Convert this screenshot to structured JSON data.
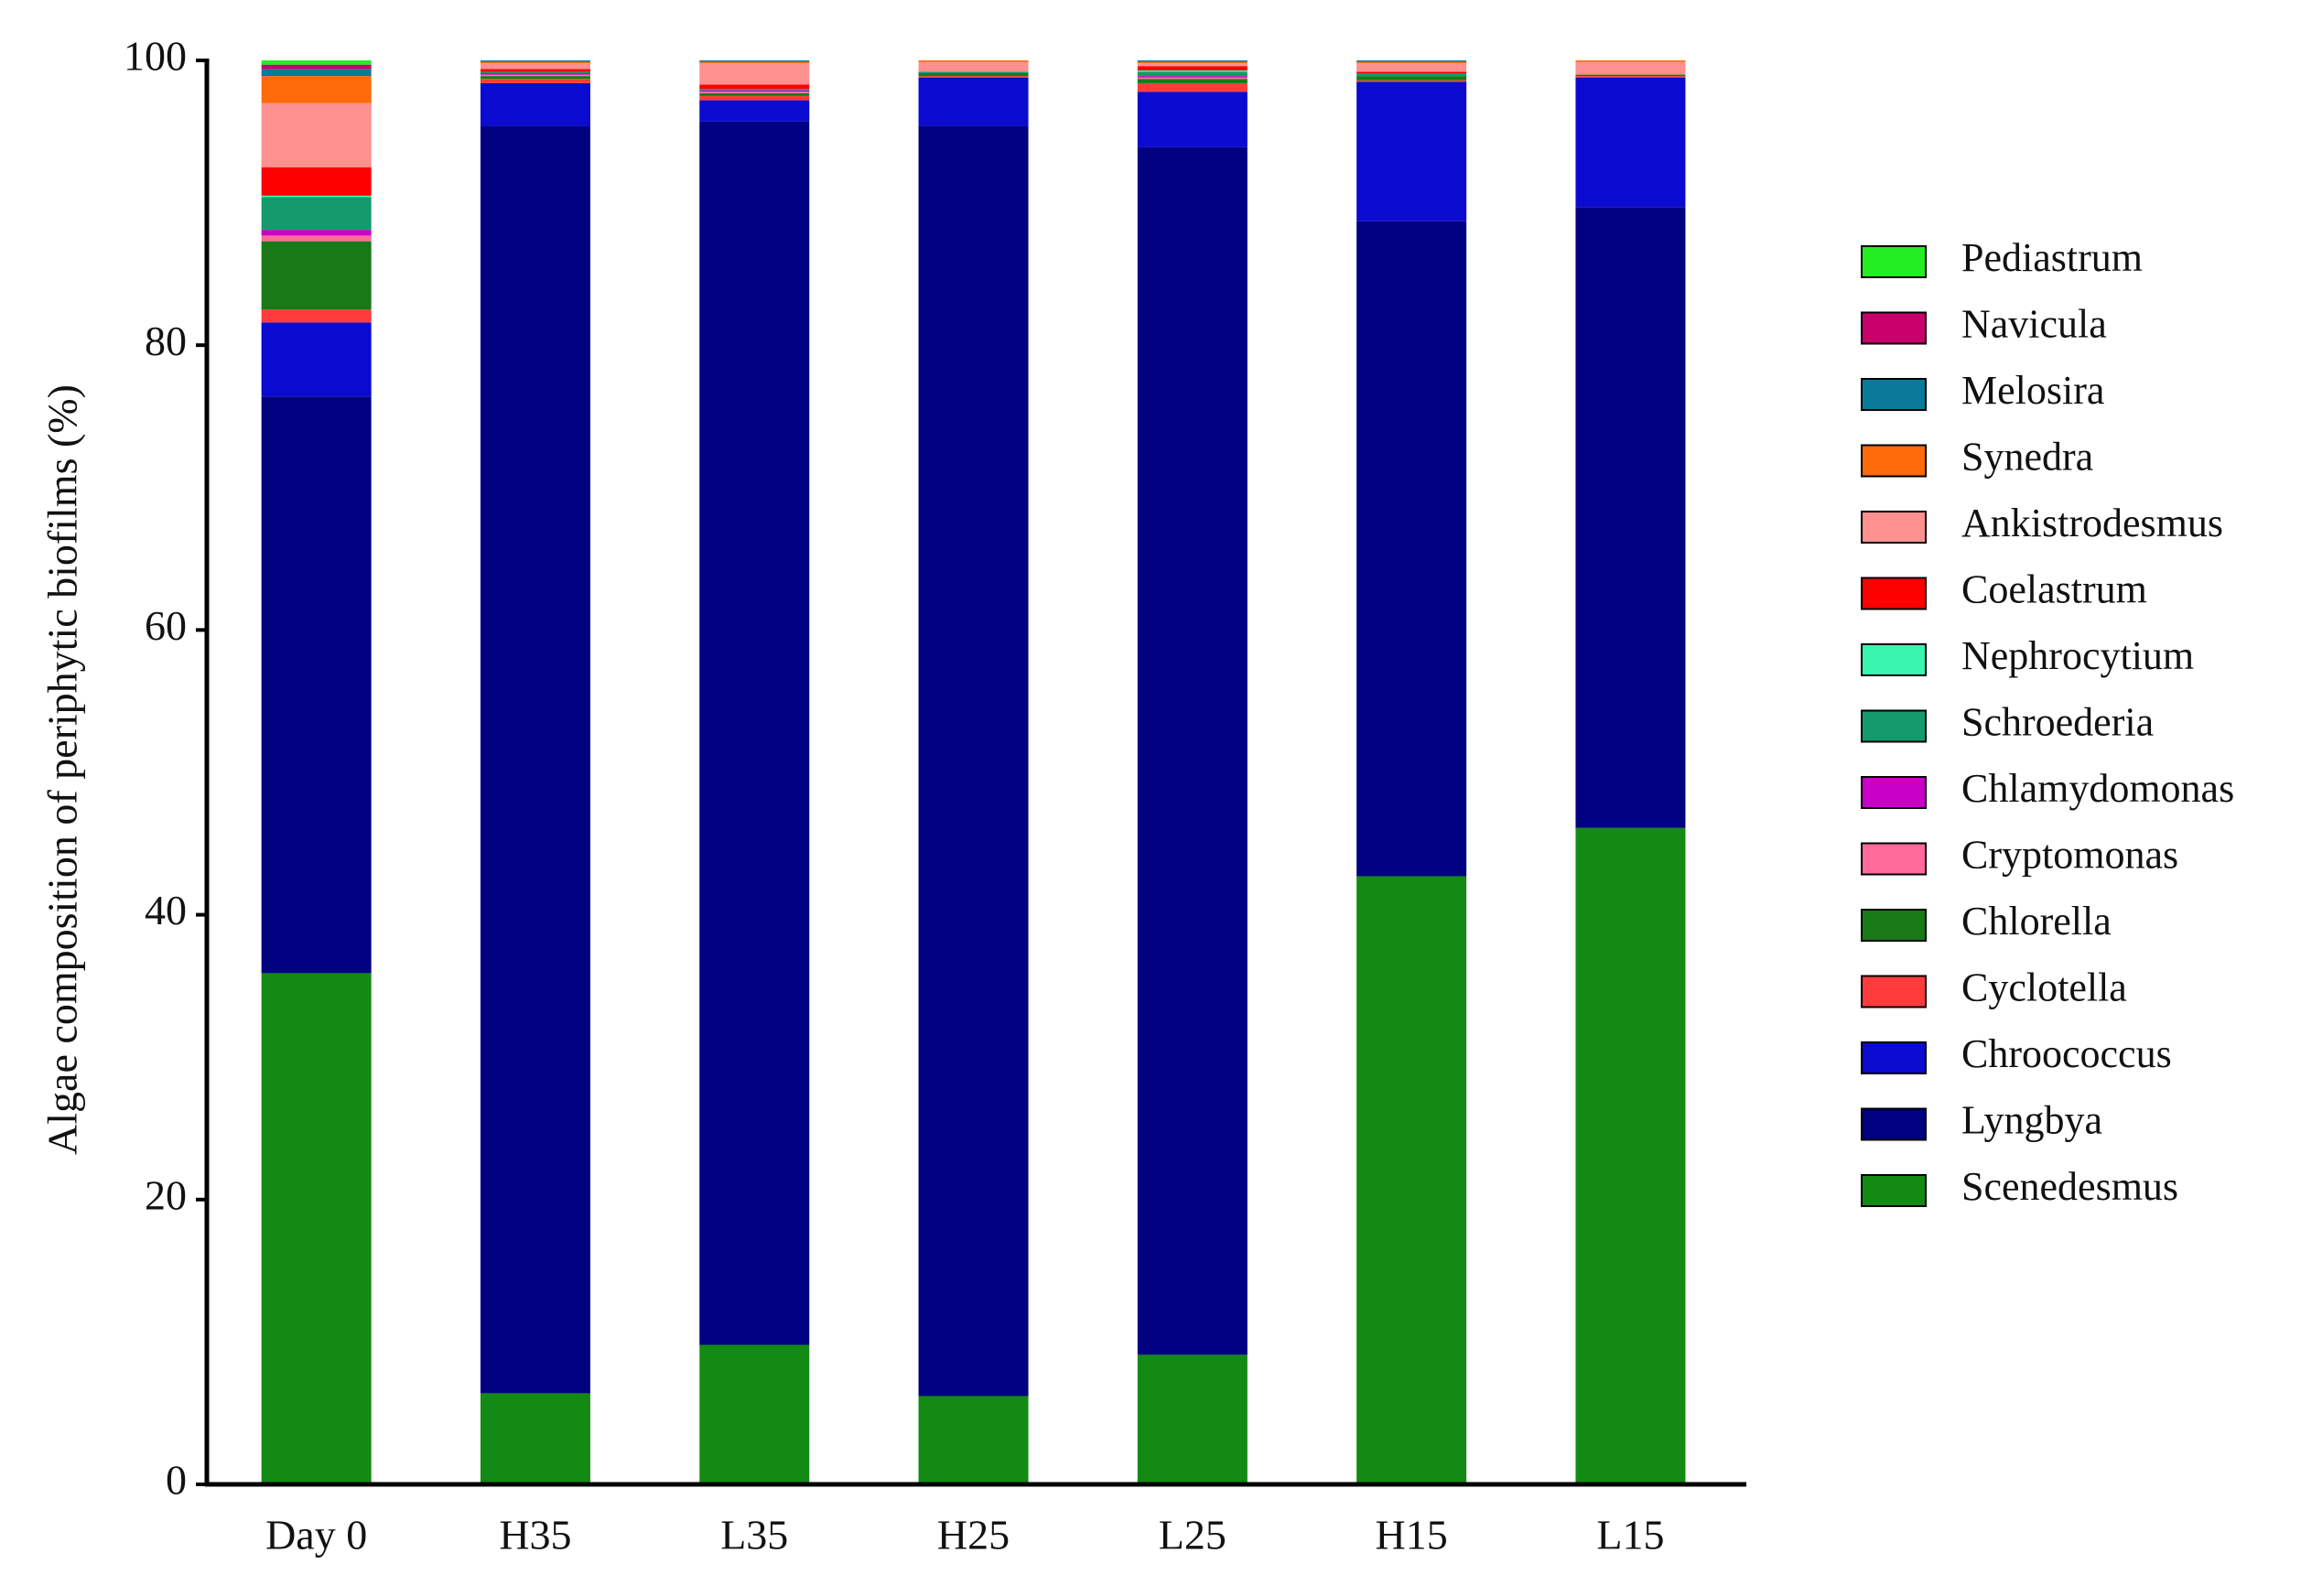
{
  "chart_data": {
    "type": "stacked_bar",
    "y_label": "Algae composition  of periphytic biofilms (%)",
    "categories": [
      "Day 0",
      "H35",
      "L35",
      "H25",
      "L25",
      "H15",
      "L15"
    ],
    "ylim": [
      0,
      100
    ],
    "yticks": [
      0,
      20,
      40,
      60,
      80,
      100
    ],
    "series": [
      {
        "name": "Scenedesmus",
        "color": "#138a13",
        "values": [
          35.9,
          6.4,
          9.8,
          6.2,
          9.1,
          42.7,
          46.1
        ]
      },
      {
        "name": "Lyngbya",
        "color": "#000080",
        "values": [
          40.5,
          89.0,
          85.9,
          89.2,
          84.8,
          46.0,
          43.6
        ]
      },
      {
        "name": "Chroococcus",
        "color": "#0a0ad0",
        "values": [
          5.2,
          3.0,
          1.5,
          3.4,
          3.9,
          9.8,
          9.1
        ]
      },
      {
        "name": "Cyclotella",
        "color": "#ff3b3b",
        "values": [
          0.9,
          0.3,
          0.3,
          0.1,
          0.6,
          0.1,
          0.1
        ]
      },
      {
        "name": "Chlorella",
        "color": "#177a17",
        "values": [
          4.8,
          0.2,
          0.2,
          0.2,
          0.3,
          0.3,
          0.1
        ]
      },
      {
        "name": "Cryptomonas",
        "color": "#ff6a9a",
        "values": [
          0.4,
          0.1,
          0.1,
          0,
          0.1,
          0,
          0
        ]
      },
      {
        "name": "Chlamydomonas",
        "color": "#c800c8",
        "values": [
          0.4,
          0.1,
          0.1,
          0,
          0.1,
          0,
          0
        ]
      },
      {
        "name": "Schroederia",
        "color": "#149a6c",
        "values": [
          2.3,
          0.1,
          0.1,
          0.1,
          0.3,
          0.2,
          0
        ]
      },
      {
        "name": "Nephrocytium",
        "color": "#3af5b0",
        "values": [
          0.1,
          0,
          0,
          0,
          0.1,
          0,
          0
        ]
      },
      {
        "name": "Coelastrum",
        "color": "#ff0000",
        "values": [
          2.0,
          0.2,
          0.3,
          0,
          0.3,
          0.1,
          0
        ]
      },
      {
        "name": "Ankistrodesmus",
        "color": "#ff9090",
        "values": [
          4.5,
          0.4,
          1.5,
          0.7,
          0.2,
          0.6,
          0.9
        ]
      },
      {
        "name": "Synedra",
        "color": "#ff6a0a",
        "values": [
          1.9,
          0.1,
          0.1,
          0.1,
          0.1,
          0.1,
          0.1
        ]
      },
      {
        "name": "Melosira",
        "color": "#0a7a9a",
        "values": [
          0.5,
          0.1,
          0.1,
          0,
          0.1,
          0.1,
          0
        ]
      },
      {
        "name": "Navicula",
        "color": "#c8006a",
        "values": [
          0.3,
          0,
          0,
          0,
          0,
          0,
          0
        ]
      },
      {
        "name": "Pediastrum",
        "color": "#22ee22",
        "values": [
          0.3,
          0,
          0,
          0,
          0,
          0,
          0
        ]
      }
    ]
  }
}
